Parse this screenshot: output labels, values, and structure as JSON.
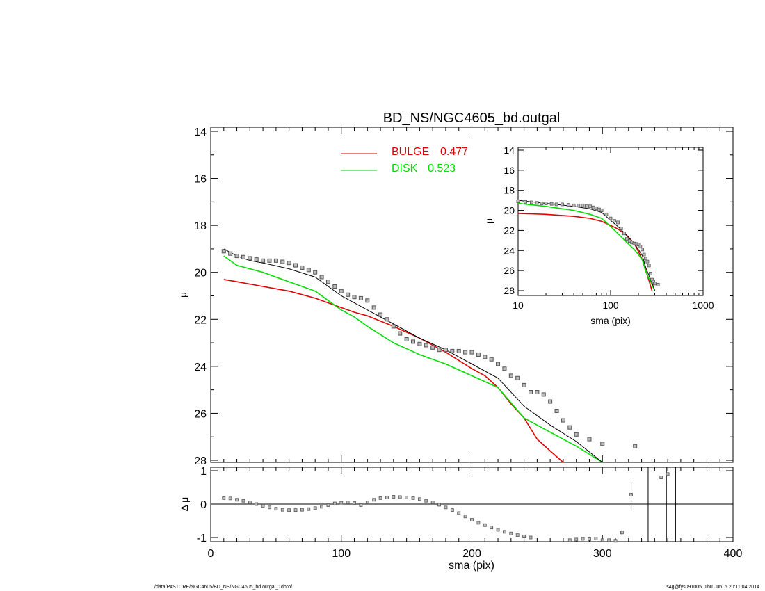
{
  "chart_data": [
    {
      "panel": "main",
      "type": "line",
      "title": "BD_NS/NGC4605_bd.outgal",
      "xlabel": "",
      "ylabel": "μ",
      "xlim": [
        0,
        400
      ],
      "ylim": [
        28,
        14
      ],
      "y_inverted": true,
      "xticks": [
        0,
        100,
        200,
        300,
        400
      ],
      "yticks": [
        14,
        16,
        18,
        20,
        22,
        24,
        26,
        28
      ],
      "legend": {
        "placement": "top",
        "entries": [
          {
            "label": "BULGE",
            "value": "0.477",
            "color": "#e00000"
          },
          {
            "label": "DISK",
            "value": "0.523",
            "color": "#00dd00"
          }
        ]
      },
      "series": [
        {
          "name": "BULGE",
          "style": "line",
          "color": "#e00000",
          "x": [
            10,
            20,
            40,
            60,
            80,
            100,
            110,
            120,
            140,
            160,
            180,
            200,
            210,
            220,
            230,
            240,
            250,
            260,
            270
          ],
          "y": [
            20.3,
            20.4,
            20.6,
            20.8,
            21.1,
            21.5,
            21.7,
            21.85,
            22.3,
            22.8,
            23.4,
            24.1,
            24.4,
            24.9,
            25.6,
            26.2,
            27.1,
            27.6,
            28.1
          ]
        },
        {
          "name": "DISK",
          "style": "line",
          "color": "#00dd00",
          "x": [
            10,
            20,
            30,
            40,
            60,
            80,
            100,
            110,
            120,
            140,
            160,
            180,
            200,
            220,
            240,
            260,
            280,
            300
          ],
          "y": [
            19.3,
            19.7,
            19.85,
            20.0,
            20.4,
            20.8,
            21.6,
            21.9,
            22.3,
            23.0,
            23.5,
            23.9,
            24.4,
            24.9,
            26.2,
            26.8,
            27.4,
            28.1
          ]
        },
        {
          "name": "",
          "style": "line",
          "color": "#000000",
          "x": [
            10,
            20,
            30,
            40,
            60,
            80,
            100,
            110,
            120,
            140,
            160,
            180,
            200,
            220,
            240,
            260,
            280,
            300
          ],
          "y": [
            19.0,
            19.3,
            19.5,
            19.6,
            19.85,
            20.2,
            21.0,
            21.3,
            21.6,
            22.2,
            22.8,
            23.3,
            23.9,
            24.5,
            25.7,
            26.5,
            27.2,
            28.1
          ]
        },
        {
          "name": "",
          "style": "markers",
          "color": "#555555",
          "x": [
            10,
            15,
            20,
            25,
            30,
            35,
            40,
            45,
            50,
            55,
            60,
            65,
            70,
            75,
            80,
            85,
            90,
            95,
            100,
            105,
            110,
            115,
            120,
            125,
            130,
            135,
            140,
            145,
            150,
            155,
            160,
            165,
            170,
            175,
            180,
            185,
            190,
            195,
            200,
            205,
            210,
            215,
            220,
            225,
            230,
            235,
            240,
            245,
            250,
            255,
            260,
            265,
            270,
            275,
            280,
            290,
            300,
            325
          ],
          "y": [
            19.1,
            19.2,
            19.3,
            19.35,
            19.4,
            19.45,
            19.5,
            19.5,
            19.5,
            19.55,
            19.6,
            19.7,
            19.8,
            19.9,
            20.0,
            20.2,
            20.4,
            20.6,
            20.8,
            20.95,
            21.05,
            21.1,
            21.2,
            21.5,
            21.8,
            22.0,
            22.3,
            22.6,
            22.85,
            22.95,
            23.05,
            23.1,
            23.2,
            23.3,
            23.3,
            23.35,
            23.35,
            23.4,
            23.4,
            23.5,
            23.6,
            23.7,
            23.9,
            24.1,
            24.4,
            24.5,
            24.8,
            25.1,
            25.1,
            25.2,
            25.5,
            25.9,
            26.3,
            26.6,
            26.9,
            27.1,
            27.3,
            27.4
          ]
        }
      ]
    },
    {
      "panel": "inset",
      "type": "line",
      "title": "",
      "xlabel": "sma (pix)",
      "ylabel": "μ",
      "xscale": "log",
      "xlim": [
        10,
        1000
      ],
      "ylim": [
        28,
        14
      ],
      "y_inverted": true,
      "xticks": [
        10,
        100,
        1000
      ],
      "yticks": [
        14,
        16,
        18,
        20,
        22,
        24,
        26,
        28
      ],
      "series": [
        {
          "name": "BULGE",
          "style": "line",
          "color": "#e00000",
          "x": [
            10,
            20,
            40,
            60,
            80,
            100,
            120,
            150,
            180,
            200,
            220,
            240,
            260,
            280
          ],
          "y": [
            20.3,
            20.4,
            20.6,
            20.8,
            21.1,
            21.5,
            21.85,
            22.5,
            23.3,
            24.1,
            24.9,
            26.0,
            27.0,
            28.0
          ]
        },
        {
          "name": "DISK",
          "style": "line",
          "color": "#00dd00",
          "x": [
            10,
            20,
            40,
            60,
            80,
            100,
            120,
            150,
            180,
            200,
            220,
            240,
            260,
            280,
            300
          ],
          "y": [
            19.3,
            19.6,
            20.0,
            20.4,
            20.8,
            21.6,
            22.3,
            23.2,
            23.9,
            24.4,
            24.9,
            26.1,
            26.8,
            27.4,
            28.0
          ]
        },
        {
          "name": "",
          "style": "line",
          "color": "#000000",
          "x": [
            10,
            20,
            40,
            60,
            80,
            100,
            120,
            150,
            180,
            200,
            220,
            240,
            260,
            280,
            300
          ],
          "y": [
            19.0,
            19.3,
            19.6,
            19.85,
            20.2,
            21.0,
            21.6,
            22.5,
            23.3,
            23.9,
            24.5,
            25.7,
            26.5,
            27.2,
            28.0
          ]
        },
        {
          "name": "",
          "style": "markers",
          "color": "#555555",
          "x": [
            10,
            12,
            14,
            16,
            18,
            20,
            23,
            26,
            30,
            35,
            40,
            45,
            50,
            55,
            60,
            65,
            70,
            75,
            80,
            90,
            100,
            110,
            120,
            130,
            140,
            150,
            160,
            170,
            180,
            190,
            200,
            210,
            220,
            230,
            240,
            250,
            260,
            270,
            280,
            290,
            300,
            325
          ],
          "y": [
            19.1,
            19.15,
            19.2,
            19.25,
            19.3,
            19.3,
            19.35,
            19.4,
            19.4,
            19.45,
            19.5,
            19.5,
            19.5,
            19.55,
            19.6,
            19.7,
            19.8,
            19.9,
            20.0,
            20.4,
            20.8,
            21.05,
            21.2,
            21.8,
            22.3,
            22.85,
            23.05,
            23.2,
            23.3,
            23.35,
            23.4,
            23.6,
            23.9,
            24.4,
            24.8,
            25.1,
            25.5,
            26.3,
            26.9,
            27.1,
            27.3,
            27.4
          ]
        }
      ]
    },
    {
      "panel": "residual",
      "type": "scatter",
      "title": "",
      "xlabel": "sma (pix)",
      "ylabel": "Δ μ",
      "xlim": [
        0,
        400
      ],
      "ylim": [
        -1.1,
        1.1
      ],
      "xticks": [
        0,
        100,
        200,
        300,
        400
      ],
      "yticks": [
        -1,
        0,
        1
      ],
      "zero_line": true,
      "vertical_lines_x": [
        335,
        349,
        356
      ],
      "series": [
        {
          "name": "",
          "style": "markers",
          "color": "#555555",
          "x": [
            10,
            15,
            20,
            25,
            30,
            35,
            40,
            45,
            50,
            55,
            60,
            65,
            70,
            75,
            80,
            85,
            90,
            95,
            100,
            105,
            110,
            115,
            120,
            125,
            130,
            135,
            140,
            145,
            150,
            155,
            160,
            165,
            170,
            175,
            180,
            185,
            190,
            195,
            200,
            205,
            210,
            215,
            220,
            225,
            230,
            235,
            240,
            245,
            275,
            280,
            285,
            290,
            295,
            300,
            305,
            310,
            315,
            322,
            345,
            350
          ],
          "y": [
            0.18,
            0.17,
            0.13,
            0.1,
            0.05,
            0.0,
            -0.05,
            -0.1,
            -0.14,
            -0.17,
            -0.18,
            -0.18,
            -0.17,
            -0.15,
            -0.12,
            -0.08,
            -0.03,
            0.02,
            0.04,
            0.05,
            0.03,
            -0.03,
            0.05,
            0.13,
            0.18,
            0.2,
            0.22,
            0.21,
            0.2,
            0.18,
            0.15,
            0.1,
            0.05,
            -0.02,
            -0.1,
            -0.18,
            -0.27,
            -0.37,
            -0.47,
            -0.56,
            -0.63,
            -0.7,
            -0.77,
            -0.83,
            -0.88,
            -0.93,
            -0.97,
            -1.0,
            -1.08,
            -1.06,
            -1.04,
            -1.05,
            -1.03,
            -1.08,
            -1.08,
            -1.1,
            -0.85,
            0.28,
            0.8,
            0.9
          ]
        }
      ]
    }
  ],
  "footer": {
    "left": "/data/P4STORE/NGC4605/BD_NS/NGC4605_bd.outgal_1dprof",
    "right": "s4g@fys091005  Thu Jun  5 20:11:04 2014"
  }
}
